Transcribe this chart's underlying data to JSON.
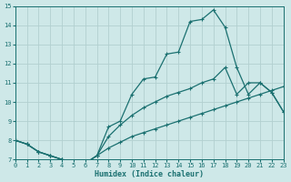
{
  "xlabel": "Humidex (Indice chaleur)",
  "xlim": [
    0,
    23
  ],
  "ylim": [
    7,
    15
  ],
  "xticks": [
    0,
    1,
    2,
    3,
    4,
    5,
    6,
    7,
    8,
    9,
    10,
    11,
    12,
    13,
    14,
    15,
    16,
    17,
    18,
    19,
    20,
    21,
    22,
    23
  ],
  "yticks": [
    7,
    8,
    9,
    10,
    11,
    12,
    13,
    14,
    15
  ],
  "bg_color": "#cee8e8",
  "grid_color": "#b2d0d0",
  "line_color": "#1a7070",
  "lines": [
    {
      "x": [
        0,
        1,
        2,
        3,
        4,
        5,
        6,
        7,
        8,
        9,
        10,
        11,
        12,
        13,
        14,
        15,
        16,
        17,
        18,
        19,
        20,
        21,
        22,
        23
      ],
      "y": [
        8.0,
        7.8,
        7.4,
        7.2,
        7.0,
        6.7,
        6.8,
        7.2,
        8.7,
        9.0,
        10.4,
        11.2,
        11.3,
        12.5,
        12.6,
        14.2,
        14.3,
        14.8,
        13.9,
        11.8,
        10.4,
        11.0,
        10.5,
        9.5
      ]
    },
    {
      "x": [
        0,
        1,
        2,
        3,
        4,
        5,
        6,
        7,
        8,
        9,
        10,
        11,
        12,
        13,
        14,
        15,
        16,
        17,
        18,
        19,
        20,
        21,
        22,
        23
      ],
      "y": [
        8.0,
        7.8,
        7.4,
        7.2,
        7.0,
        6.7,
        6.8,
        7.2,
        8.2,
        8.8,
        9.3,
        9.7,
        10.0,
        10.3,
        10.5,
        10.7,
        11.0,
        11.2,
        11.8,
        10.4,
        11.0,
        11.0,
        10.5,
        9.5
      ]
    },
    {
      "x": [
        0,
        1,
        2,
        3,
        4,
        5,
        6,
        7,
        8,
        9,
        10,
        11,
        12,
        13,
        14,
        15,
        16,
        17,
        18,
        19,
        20,
        21,
        22,
        23
      ],
      "y": [
        8.0,
        7.8,
        7.4,
        7.2,
        7.0,
        6.7,
        6.8,
        7.2,
        7.6,
        7.9,
        8.2,
        8.4,
        8.6,
        8.8,
        9.0,
        9.2,
        9.4,
        9.6,
        9.8,
        10.0,
        10.2,
        10.4,
        10.6,
        10.8
      ]
    }
  ]
}
